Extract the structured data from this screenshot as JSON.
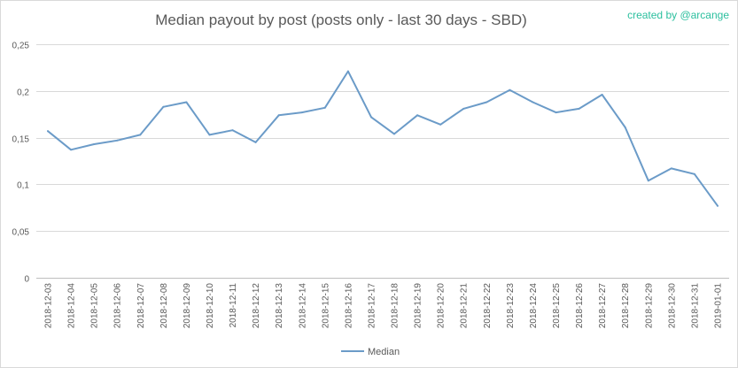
{
  "chart_data": {
    "type": "line",
    "title": "Median payout by post (posts only - last 30 days - SBD)",
    "credit": "created by @arcange",
    "xlabel": "",
    "ylabel": "",
    "ylim": [
      0,
      0.25
    ],
    "yticks": [
      0,
      0.05,
      0.1,
      0.15,
      0.2,
      0.25
    ],
    "ytick_labels": [
      "0",
      "0,05",
      "0,1",
      "0,15",
      "0,2",
      "0,25"
    ],
    "grid": true,
    "legend_position": "bottom",
    "categories": [
      "2018-12-03",
      "2018-12-04",
      "2018-12-05",
      "2018-12-06",
      "2018-12-07",
      "2018-12-08",
      "2018-12-09",
      "2018-12-10",
      "2018-12-11",
      "2018-12-12",
      "2018-12-13",
      "2018-12-14",
      "2018-12-15",
      "2018-12-16",
      "2018-12-17",
      "2018-12-18",
      "2018-12-19",
      "2018-12-20",
      "2018-12-21",
      "2018-12-22",
      "2018-12-23",
      "2018-12-24",
      "2018-12-25",
      "2018-12-26",
      "2018-12-27",
      "2018-12-28",
      "2018-12-29",
      "2018-12-30",
      "2018-12-31",
      "2019-01-01"
    ],
    "series": [
      {
        "name": "Median",
        "color": "#6b9bc8",
        "values": [
          0.157,
          0.137,
          0.143,
          0.147,
          0.153,
          0.183,
          0.188,
          0.153,
          0.158,
          0.145,
          0.174,
          0.177,
          0.182,
          0.221,
          0.172,
          0.154,
          0.174,
          0.164,
          0.181,
          0.188,
          0.201,
          0.188,
          0.177,
          0.181,
          0.196,
          0.161,
          0.104,
          0.117,
          0.111,
          0.077
        ]
      }
    ]
  }
}
